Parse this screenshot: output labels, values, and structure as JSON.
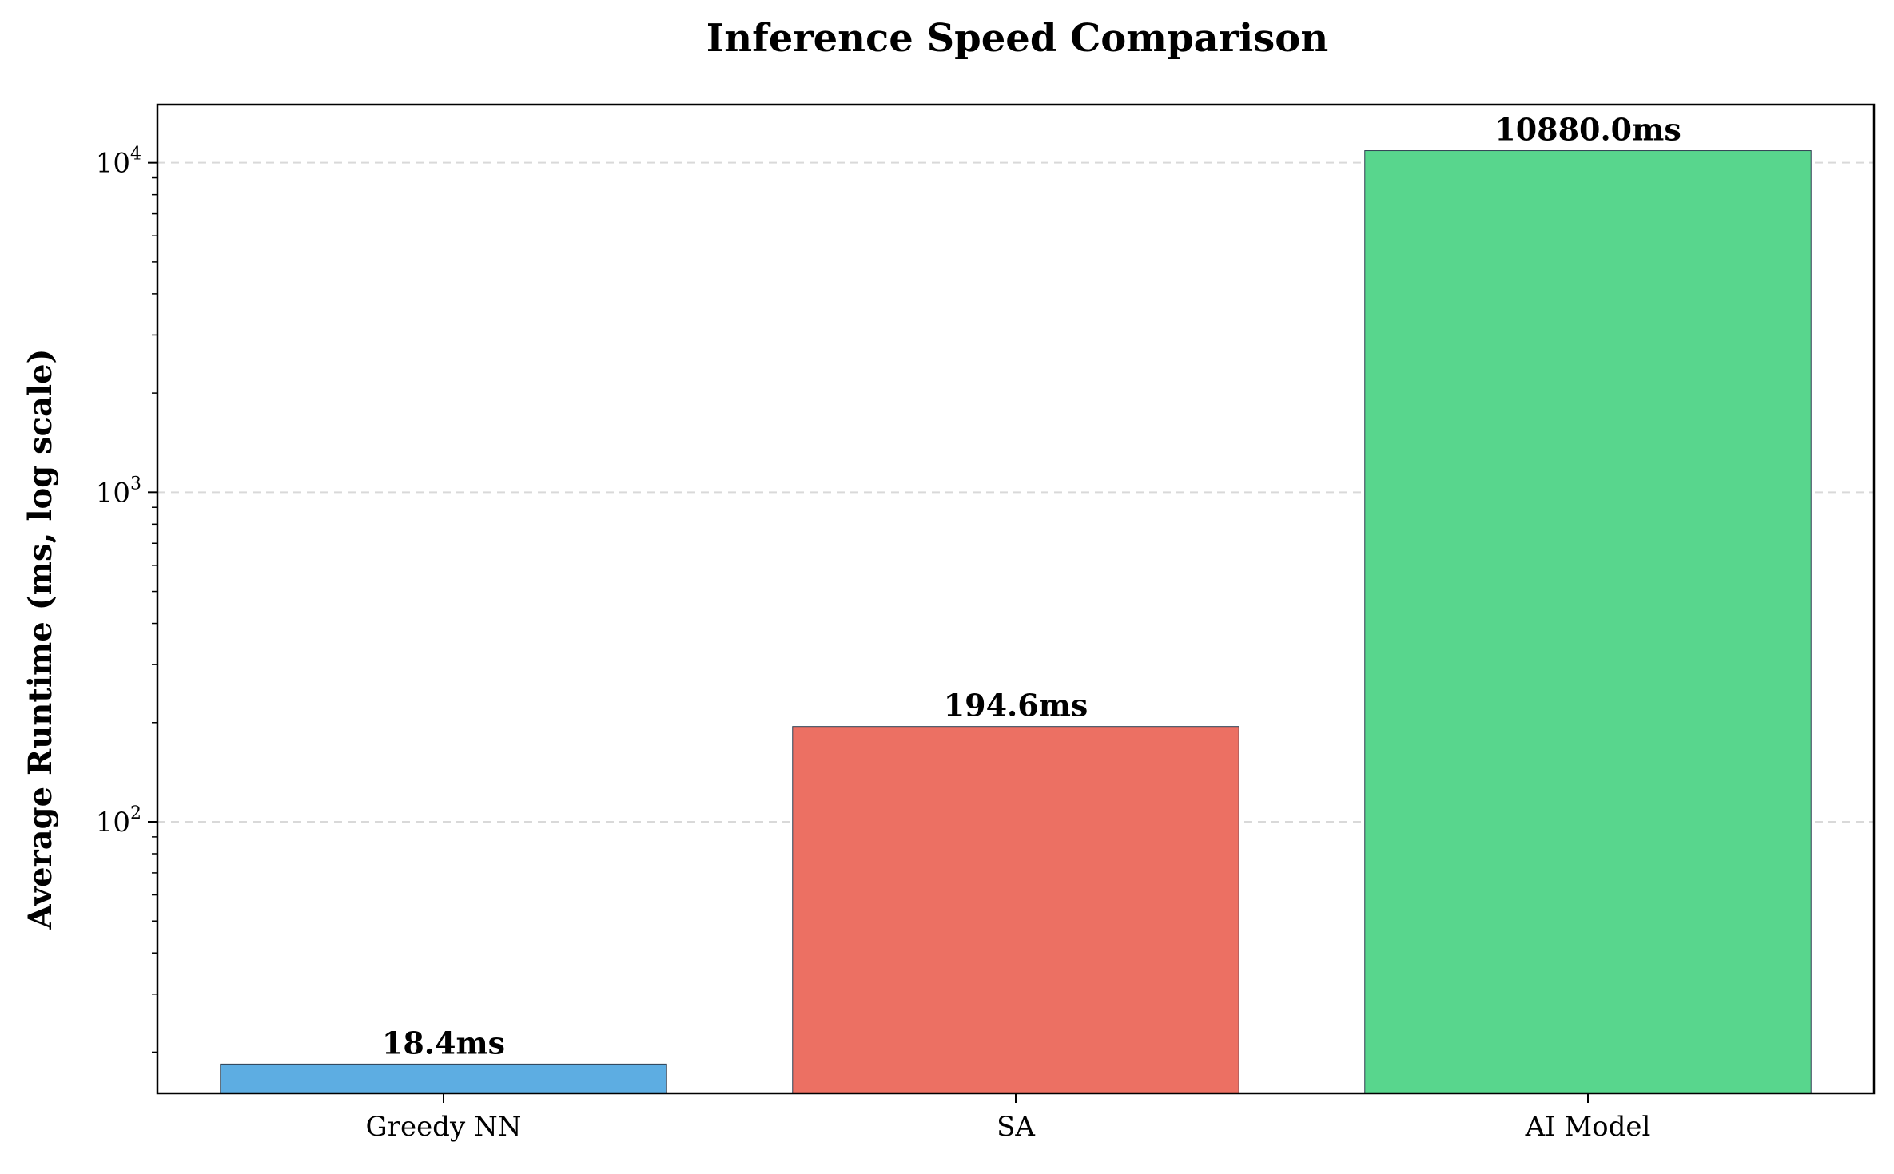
{
  "chart_data": {
    "type": "bar",
    "title": "Inference Speed Comparison",
    "xlabel": "",
    "ylabel": "Average Runtime (ms, log scale)",
    "yscale": "log",
    "ylim": [
      15,
      15000
    ],
    "yticks": [
      {
        "value": 100,
        "base": "10",
        "exp": "2"
      },
      {
        "value": 1000,
        "base": "10",
        "exp": "3"
      },
      {
        "value": 10000,
        "base": "10",
        "exp": "4"
      }
    ],
    "grid": "horizontal dashed",
    "categories": [
      "Greedy NN",
      "SA",
      "AI Model"
    ],
    "values": [
      18.4,
      194.6,
      10880.0
    ],
    "data_labels": [
      "18.4ms",
      "194.6ms",
      "10880.0ms"
    ],
    "colors": [
      "#5DADE2",
      "#EC7063",
      "#58D68D"
    ]
  }
}
